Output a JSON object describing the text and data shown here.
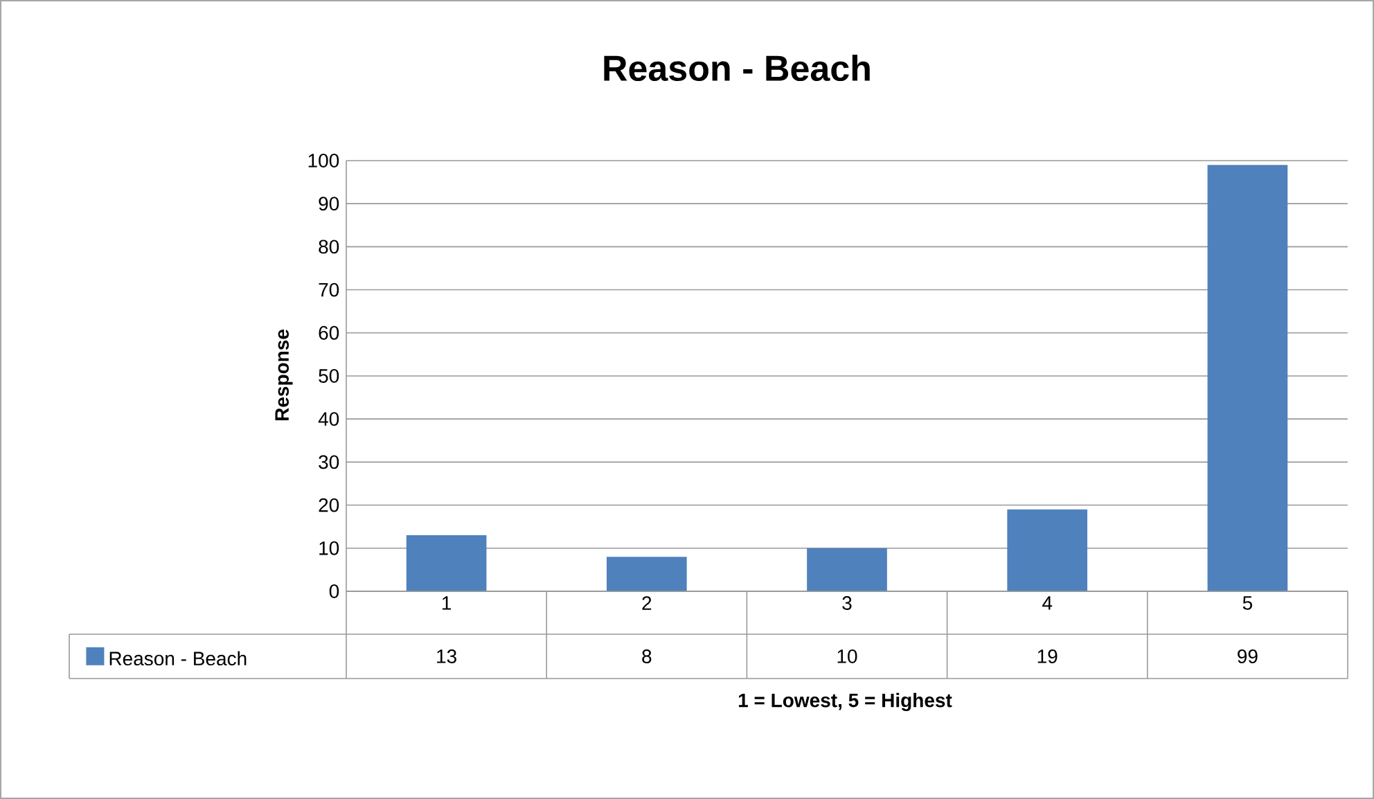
{
  "chart_data": {
    "type": "bar",
    "title": "Reason - Beach",
    "xlabel": "1 = Lowest, 5 = Highest",
    "ylabel": "Response",
    "categories": [
      "1",
      "2",
      "3",
      "4",
      "5"
    ],
    "series": [
      {
        "name": "Reason - Beach",
        "color": "#4f81bd",
        "values": [
          13,
          8,
          10,
          19,
          99
        ]
      }
    ],
    "ylim": [
      0,
      100
    ],
    "yticks": [
      0,
      10,
      20,
      30,
      40,
      50,
      60,
      70,
      80,
      90,
      100
    ],
    "grid": "y",
    "legend": "bottom",
    "data_labels": true
  }
}
